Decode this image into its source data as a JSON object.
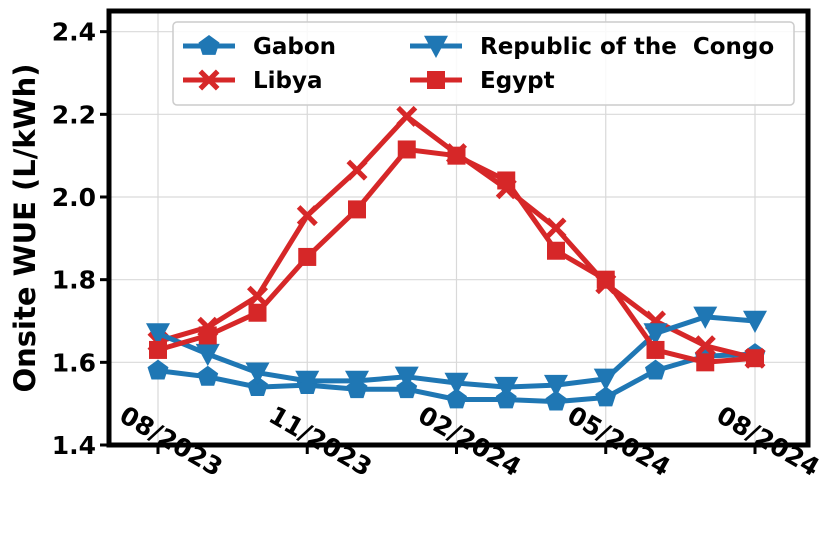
{
  "chart_data": {
    "type": "line",
    "ylabel": "Onsite WUE (L/kWh)",
    "xlabel": "",
    "x": [
      "08/2023",
      "09/2023",
      "10/2023",
      "11/2023",
      "12/2023",
      "01/2024",
      "02/2024",
      "03/2024",
      "04/2024",
      "05/2024",
      "06/2024",
      "07/2024",
      "08/2024"
    ],
    "x_tick_labels": [
      "08/2023",
      "11/2023",
      "02/2024",
      "05/2024",
      "08/2024"
    ],
    "ylim": [
      1.4,
      2.45
    ],
    "y_ticks": [
      1.4,
      1.6,
      1.8,
      2.0,
      2.2,
      2.4
    ],
    "y_tick_labels": [
      "1.4",
      "1.6",
      "1.8",
      "2.0",
      "2.2",
      "2.4"
    ],
    "grid": true,
    "legend_position": "top-right",
    "series": [
      {
        "name": "Gabon",
        "color": "#1f77b4",
        "marker": "pentagon",
        "values": [
          1.58,
          1.565,
          1.54,
          1.545,
          1.535,
          1.535,
          1.51,
          1.51,
          1.505,
          1.515,
          1.58,
          1.615,
          1.62
        ]
      },
      {
        "name": "Libya",
        "color": "#d62728",
        "marker": "x",
        "values": [
          1.65,
          1.685,
          1.76,
          1.955,
          2.065,
          2.195,
          2.105,
          2.02,
          1.925,
          1.79,
          1.7,
          1.64,
          1.61
        ]
      },
      {
        "name": "Republic of the  Congo",
        "color": "#1f77b4",
        "marker": "triangle-down",
        "values": [
          1.67,
          1.62,
          1.575,
          1.555,
          1.555,
          1.565,
          1.55,
          1.54,
          1.545,
          1.56,
          1.67,
          1.71,
          1.7
        ]
      },
      {
        "name": "Egypt",
        "color": "#d62728",
        "marker": "square",
        "values": [
          1.63,
          1.665,
          1.72,
          1.855,
          1.97,
          2.115,
          2.1,
          2.04,
          1.87,
          1.8,
          1.63,
          1.6,
          1.61
        ]
      }
    ]
  }
}
